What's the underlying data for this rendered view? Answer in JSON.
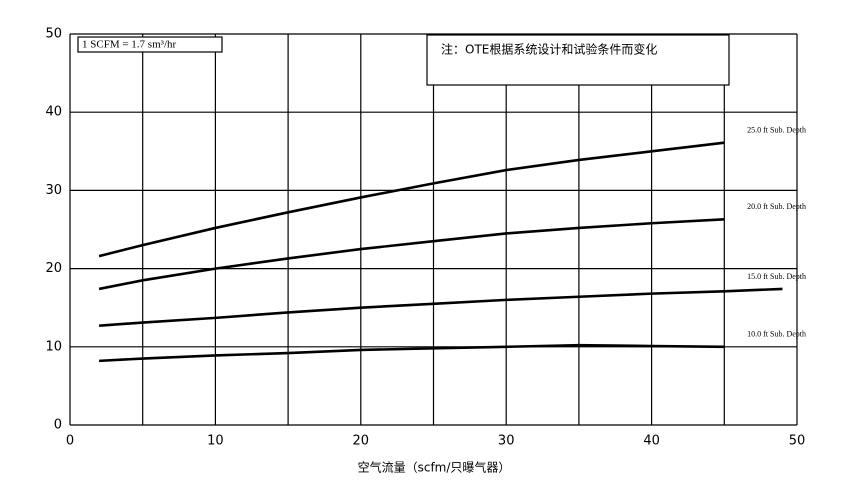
{
  "chart_data": {
    "type": "line",
    "x_label": "空气流量（scfm/只曝气器）",
    "annotations": [
      "1 SCFM = 1.7 sm³/hr",
      "注：OTE根据系统设计和试验条件而变化"
    ],
    "x": [
      2,
      5,
      10,
      15,
      20,
      25,
      30,
      35,
      40,
      45,
      49
    ],
    "series": [
      {
        "name": "25.0 ft  Sub. Depth",
        "color": "#000000",
        "values": [
          21.6,
          23,
          25.2,
          27.2,
          29.1,
          30.9,
          32.6,
          33.9,
          35,
          36.1,
          null
        ]
      },
      {
        "name": "20.0 ft  Sub. Depth",
        "color": "#000000",
        "values": [
          17.4,
          18.5,
          20,
          21.3,
          22.5,
          23.5,
          24.5,
          25.2,
          25.8,
          26.3,
          null
        ]
      },
      {
        "name": "15.0 ft  Sub. Depth",
        "color": "#000000",
        "values": [
          12.7,
          13.1,
          13.7,
          14.4,
          15,
          15.5,
          16,
          16.4,
          16.8,
          17.1,
          17.4
        ]
      },
      {
        "name": "10.0 ft  Sub. Depth",
        "color": "#000000",
        "values": [
          8.2,
          8.5,
          8.9,
          9.2,
          9.6,
          9.8,
          10,
          10.2,
          10.1,
          10,
          null
        ]
      }
    ],
    "xlim": [
      0,
      50
    ],
    "xticks": [
      0,
      10,
      20,
      30,
      40,
      50
    ],
    "xgrid_minor": [
      5,
      15,
      25,
      35,
      45
    ],
    "ylim": [
      0,
      50
    ],
    "yticks": [
      0,
      10,
      20,
      30,
      40,
      50
    ],
    "grid": true
  }
}
